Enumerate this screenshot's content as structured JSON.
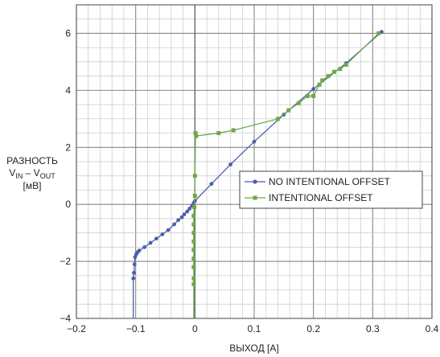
{
  "chart_data": {
    "type": "line",
    "xlabel": "ВЫХОД [А]",
    "ylabel_lines": [
      "РАЗНОСТЬ",
      "[мВ]"
    ],
    "ylabel_vin": "V",
    "ylabel_vin_sub": "IN",
    "ylabel_sep": " – ",
    "ylabel_vout": "V",
    "ylabel_vout_sub": "OUT",
    "xlim": [
      -0.2,
      0.4
    ],
    "ylim": [
      -4,
      7
    ],
    "x_ticks": [
      "−0.2",
      "−0.1",
      "0",
      "0.1",
      "0.2",
      "0.3",
      "0.4"
    ],
    "x_tick_values": [
      -0.2,
      -0.1,
      0,
      0.1,
      0.2,
      0.3,
      0.4
    ],
    "y_ticks": [
      "−4",
      "−2",
      "0",
      "2",
      "4",
      "6"
    ],
    "y_tick_values": [
      -4,
      -2,
      0,
      2,
      4,
      6
    ],
    "grid": true,
    "legend_position": "middle-right",
    "series": [
      {
        "name": "NO INTENTIONAL OFFSET",
        "color": "#4a5fa8",
        "marker": "circle",
        "values": [
          [
            -0.104,
            -4.0
          ],
          [
            -0.104,
            -2.6
          ],
          [
            -0.103,
            -2.4
          ],
          [
            -0.102,
            -2.1
          ],
          [
            -0.101,
            -1.85
          ],
          [
            -0.099,
            -1.75
          ],
          [
            -0.097,
            -1.68
          ],
          [
            -0.094,
            -1.62
          ],
          [
            -0.085,
            -1.5
          ],
          [
            -0.075,
            -1.35
          ],
          [
            -0.065,
            -1.2
          ],
          [
            -0.055,
            -1.05
          ],
          [
            -0.045,
            -0.9
          ],
          [
            -0.035,
            -0.7
          ],
          [
            -0.028,
            -0.55
          ],
          [
            -0.022,
            -0.45
          ],
          [
            -0.018,
            -0.35
          ],
          [
            -0.013,
            -0.25
          ],
          [
            -0.009,
            -0.15
          ],
          [
            -0.005,
            -0.05
          ],
          [
            -0.002,
            0.05
          ],
          [
            0.0,
            0.12
          ],
          [
            0.028,
            0.72
          ],
          [
            0.06,
            1.4
          ],
          [
            0.1,
            2.2
          ],
          [
            0.15,
            3.15
          ],
          [
            0.2,
            4.05
          ],
          [
            0.255,
            4.95
          ],
          [
            0.315,
            6.05
          ]
        ]
      },
      {
        "name": "INTENTIONAL OFFSET",
        "color": "#6ea84a",
        "marker": "square",
        "values": [
          [
            -0.002,
            -4.0
          ],
          [
            -0.002,
            -2.8
          ],
          [
            -0.002,
            -2.6
          ],
          [
            -0.002,
            -2.2
          ],
          [
            -0.002,
            -1.9
          ],
          [
            -0.002,
            -1.6
          ],
          [
            -0.002,
            -1.3
          ],
          [
            -0.002,
            -1.0
          ],
          [
            -0.002,
            -0.7
          ],
          [
            -0.002,
            -0.4
          ],
          [
            -0.001,
            -0.1
          ],
          [
            0.0,
            0.3
          ],
          [
            0.0,
            1.0
          ],
          [
            0.001,
            2.5
          ],
          [
            0.002,
            2.4
          ],
          [
            0.04,
            2.5
          ],
          [
            0.065,
            2.6
          ],
          [
            0.14,
            3.0
          ],
          [
            0.158,
            3.3
          ],
          [
            0.175,
            3.55
          ],
          [
            0.19,
            3.8
          ],
          [
            0.2,
            3.8
          ],
          [
            0.21,
            4.2
          ],
          [
            0.215,
            4.35
          ],
          [
            0.225,
            4.5
          ],
          [
            0.235,
            4.65
          ],
          [
            0.245,
            4.75
          ],
          [
            0.255,
            4.9
          ],
          [
            0.31,
            6.0
          ]
        ]
      }
    ]
  }
}
